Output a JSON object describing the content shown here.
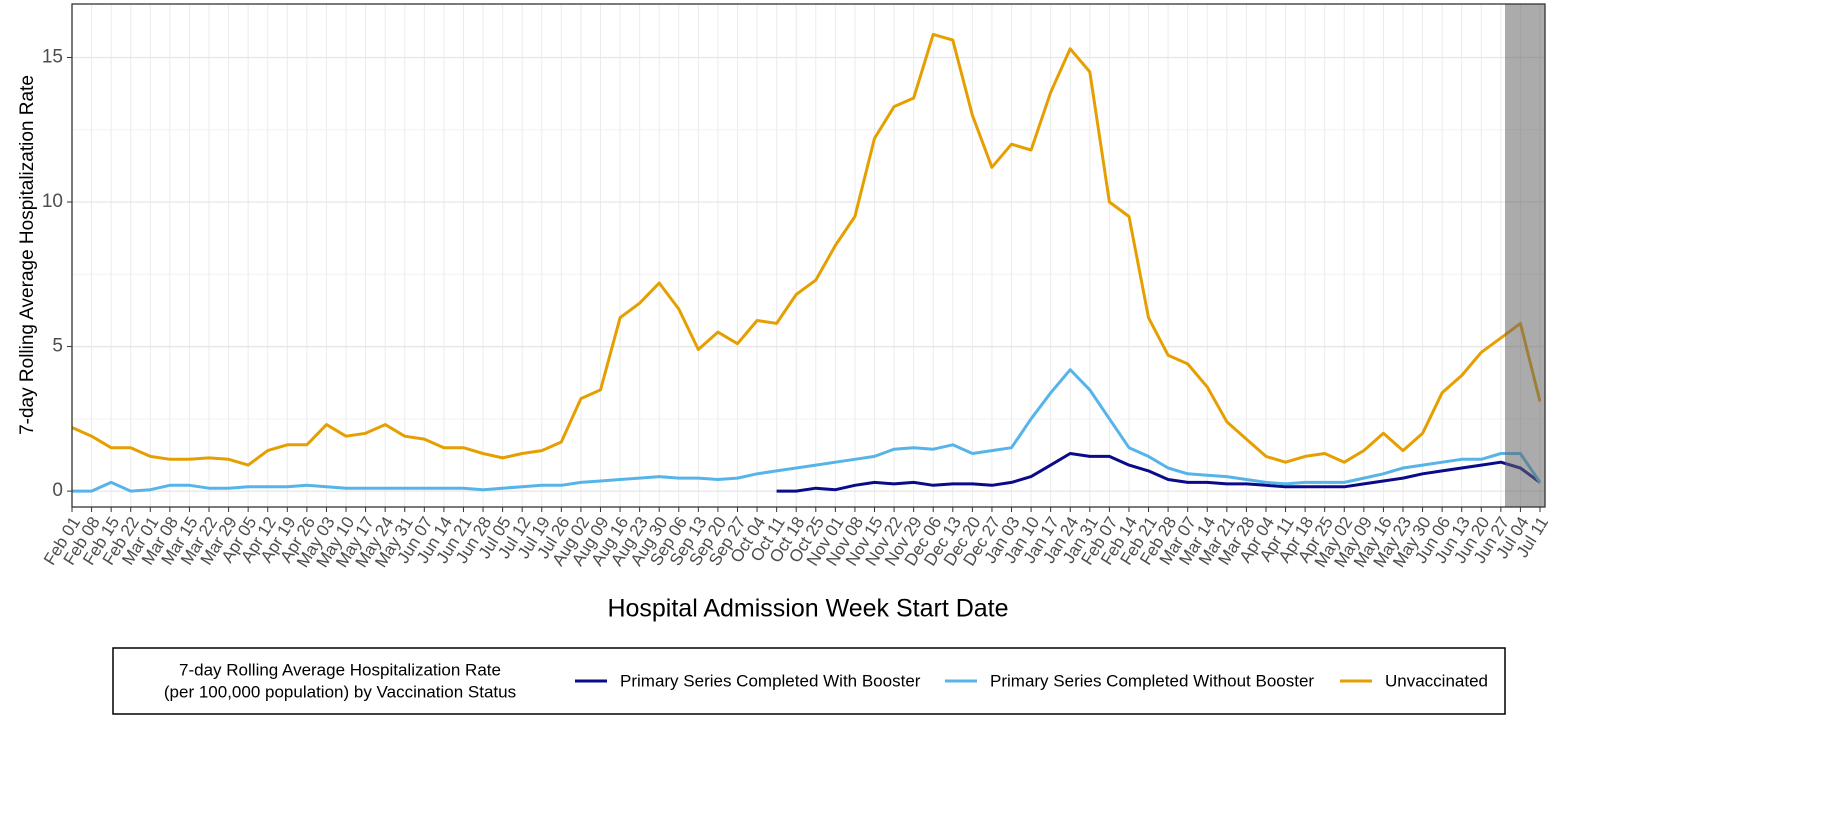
{
  "chart_data": {
    "type": "line",
    "y_label": "7-day Rolling Average Hospitalization Rate",
    "x_label": "Hospital Admission Week Start Date",
    "legend_title": [
      "7-day Rolling Average Hospitalization Rate",
      "(per 100,000 population) by Vaccination Status"
    ],
    "legend": "bottom",
    "grid": true,
    "ylim": [
      -0.55,
      16.85
    ],
    "yticks": [
      0,
      5,
      10,
      15
    ],
    "categories": [
      "Feb 01",
      "Feb 08",
      "Feb 15",
      "Feb 22",
      "Mar 01",
      "Mar 08",
      "Mar 15",
      "Mar 22",
      "Mar 29",
      "Apr 05",
      "Apr 12",
      "Apr 19",
      "Apr 26",
      "May 03",
      "May 10",
      "May 17",
      "May 24",
      "May 31",
      "Jun 07",
      "Jun 14",
      "Jun 21",
      "Jun 28",
      "Jul 05",
      "Jul 12",
      "Jul 19",
      "Jul 26",
      "Aug 02",
      "Aug 09",
      "Aug 16",
      "Aug 23",
      "Aug 30",
      "Sep 06",
      "Sep 13",
      "Sep 20",
      "Sep 27",
      "Oct 04",
      "Oct 11",
      "Oct 18",
      "Oct 25",
      "Nov 01",
      "Nov 08",
      "Nov 15",
      "Nov 22",
      "Nov 29",
      "Dec 06",
      "Dec 13",
      "Dec 20",
      "Dec 27",
      "Jan 03",
      "Jan 10",
      "Jan 17",
      "Jan 24",
      "Jan 31",
      "Feb 07",
      "Feb 14",
      "Feb 21",
      "Feb 28",
      "Mar 07",
      "Mar 14",
      "Mar 21",
      "Mar 28",
      "Apr 04",
      "Apr 11",
      "Apr 18",
      "Apr 25",
      "May 02",
      "May 09",
      "May 16",
      "May 23",
      "May 30",
      "Jun 06",
      "Jun 13",
      "Jun 20",
      "Jun 27",
      "Jul 04",
      "Jul 11"
    ],
    "series": [
      {
        "name": "Primary Series Completed With Booster",
        "color": "#0b0b8a",
        "values": [
          null,
          null,
          null,
          null,
          null,
          null,
          null,
          null,
          null,
          null,
          null,
          null,
          null,
          null,
          null,
          null,
          null,
          null,
          null,
          null,
          null,
          null,
          null,
          null,
          null,
          null,
          null,
          null,
          null,
          null,
          null,
          null,
          null,
          null,
          null,
          null,
          0,
          0,
          0.1,
          0.05,
          0.2,
          0.3,
          0.25,
          0.3,
          0.2,
          0.25,
          0.25,
          0.2,
          0.3,
          0.5,
          0.9,
          1.3,
          1.2,
          1.2,
          0.9,
          0.7,
          0.4,
          0.3,
          0.3,
          0.25,
          0.25,
          0.2,
          0.15,
          0.15,
          0.15,
          0.15,
          0.25,
          0.35,
          0.45,
          0.6,
          0.7,
          0.8,
          0.9,
          1.0,
          0.8,
          0.3
        ]
      },
      {
        "name": "Primary Series Completed Without Booster",
        "color": "#56b4e9",
        "values": [
          0,
          0,
          0.3,
          0,
          0.05,
          0.2,
          0.2,
          0.1,
          0.1,
          0.15,
          0.15,
          0.15,
          0.2,
          0.15,
          0.1,
          0.1,
          0.1,
          0.1,
          0.1,
          0.1,
          0.1,
          0.05,
          0.1,
          0.15,
          0.2,
          0.2,
          0.3,
          0.35,
          0.4,
          0.45,
          0.5,
          0.45,
          0.45,
          0.4,
          0.45,
          0.6,
          0.7,
          0.8,
          0.9,
          1.0,
          1.1,
          1.2,
          1.45,
          1.5,
          1.45,
          1.6,
          1.3,
          1.4,
          1.5,
          2.5,
          3.4,
          4.2,
          3.5,
          2.5,
          1.5,
          1.2,
          0.8,
          0.6,
          0.55,
          0.5,
          0.4,
          0.3,
          0.25,
          0.3,
          0.3,
          0.3,
          0.45,
          0.6,
          0.8,
          0.9,
          1.0,
          1.1,
          1.1,
          1.3,
          1.3,
          0.3
        ]
      },
      {
        "name": "Unvaccinated",
        "color": "#e69f00",
        "values": [
          2.2,
          1.9,
          1.5,
          1.5,
          1.2,
          1.1,
          1.1,
          1.15,
          1.1,
          0.9,
          1.4,
          1.6,
          1.6,
          2.3,
          1.9,
          2.0,
          2.3,
          1.9,
          1.8,
          1.5,
          1.5,
          1.3,
          1.15,
          1.3,
          1.4,
          1.7,
          3.2,
          3.5,
          6.0,
          6.5,
          7.2,
          6.3,
          4.9,
          5.5,
          5.1,
          5.9,
          5.8,
          6.8,
          7.3,
          8.5,
          9.5,
          12.2,
          13.3,
          13.6,
          15.8,
          15.6,
          13.0,
          11.2,
          12.0,
          11.8,
          13.8,
          15.3,
          14.5,
          10.0,
          9.5,
          6.0,
          4.7,
          4.4,
          3.6,
          2.4,
          1.8,
          1.2,
          1.0,
          1.2,
          1.3,
          1.0,
          1.4,
          2.0,
          1.4,
          2.0,
          3.4,
          4.0,
          4.8,
          5.3,
          5.8,
          3.1
        ]
      }
    ]
  }
}
